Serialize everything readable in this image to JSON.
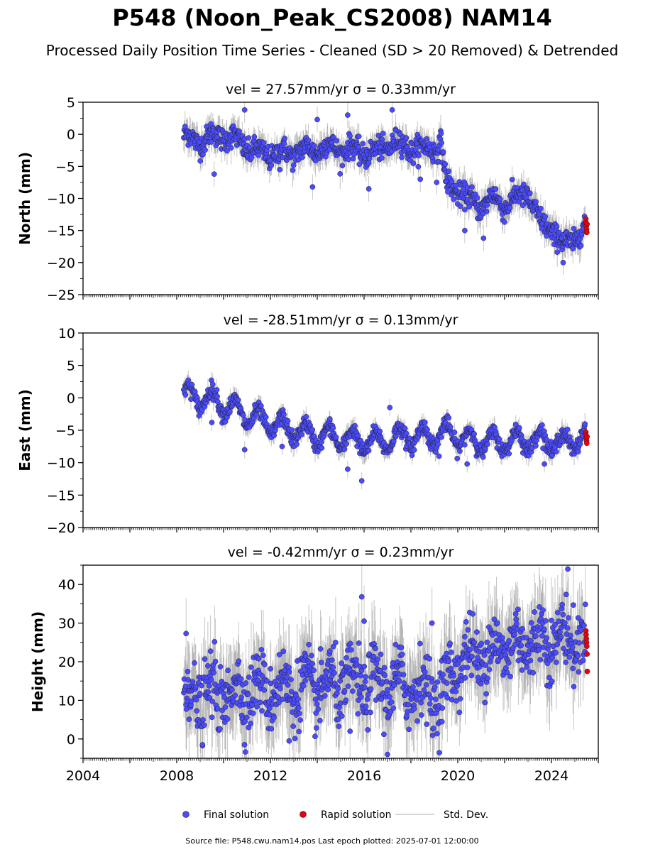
{
  "figure": {
    "title": "P548 (Noon_Peak_CS2008) NAM14",
    "subtitle": "Processed Daily Position Time Series - Cleaned (SD > 20 Removed) & Detrended",
    "source_note": "Source file: P548.cwu.nam14.pos  Last epoch plotted: 2025-07-01 12:00:00"
  },
  "legend": {
    "final": "Final solution",
    "rapid": "Rapid solution",
    "std": "Std. Dev."
  },
  "colors": {
    "final": "#4a4aff",
    "rapid": "#e8000b",
    "std": "#b0b0b0",
    "std_dense": "#505050"
  },
  "chart_data": [
    {
      "type": "scatter",
      "title": "vel = 27.57mm/yr   σ = 0.33mm/yr",
      "ylabel": "North (mm)",
      "xlim": [
        2004.0,
        2026.0
      ],
      "ylim": [
        -25,
        5
      ],
      "yticks": [
        -25,
        -20,
        -15,
        -10,
        -5,
        0,
        5
      ],
      "ytick_labels": [
        "−25",
        "−20",
        "−15",
        "−10",
        "−5",
        "0",
        "5"
      ],
      "final_trend": [
        [
          2008.3,
          -0.5
        ],
        [
          2009.0,
          -1.0
        ],
        [
          2010.0,
          0.0
        ],
        [
          2010.8,
          -1.5
        ],
        [
          2011.5,
          -3.0
        ],
        [
          2012.5,
          -3.0
        ],
        [
          2013.5,
          -2.5
        ],
        [
          2014.5,
          -2.0
        ],
        [
          2015.5,
          -2.5
        ],
        [
          2016.5,
          -3.0
        ],
        [
          2017.0,
          -1.5
        ],
        [
          2017.5,
          -1.5
        ],
        [
          2018.5,
          -2.5
        ],
        [
          2019.3,
          -1.5
        ],
        [
          2019.5,
          -8.0
        ],
        [
          2020.0,
          -8.5
        ],
        [
          2020.5,
          -10.5
        ],
        [
          2021.0,
          -11.0
        ],
        [
          2021.5,
          -10.0
        ],
        [
          2022.0,
          -11.0
        ],
        [
          2022.5,
          -10.0
        ],
        [
          2023.0,
          -9.0
        ],
        [
          2023.5,
          -14.0
        ],
        [
          2024.0,
          -14.5
        ],
        [
          2024.5,
          -17.5
        ],
        [
          2025.0,
          -16.0
        ],
        [
          2025.45,
          -14.5
        ]
      ],
      "final_outliers": [
        [
          2010.9,
          3.8
        ],
        [
          2012.4,
          -5.5
        ],
        [
          2014.0,
          2.3
        ],
        [
          2015.3,
          3.0
        ],
        [
          2016.7,
          -2.0
        ],
        [
          2017.2,
          3.8
        ],
        [
          2019.1,
          -7.5
        ],
        [
          2020.3,
          -15.0
        ],
        [
          2021.1,
          -16.2
        ],
        [
          2024.5,
          -20.0
        ],
        [
          2009.6,
          -6.2
        ],
        [
          2013.8,
          -8.2
        ],
        [
          2018.4,
          -7.0
        ],
        [
          2016.2,
          -8.5
        ]
      ],
      "rapid": [
        [
          2025.47,
          -13.2
        ],
        [
          2025.48,
          -13.8
        ],
        [
          2025.49,
          -14.3
        ],
        [
          2025.5,
          -14.8
        ],
        [
          2025.51,
          -15.3
        ],
        [
          2025.52,
          -14.0
        ]
      ],
      "amplitude": 0.8,
      "noise": 0.9
    },
    {
      "type": "scatter",
      "title": "vel = -28.51mm/yr   σ = 0.13mm/yr",
      "ylabel": "East (mm)",
      "xlim": [
        2004.0,
        2026.0
      ],
      "ylim": [
        -20,
        10
      ],
      "yticks": [
        -20,
        -15,
        -10,
        -5,
        0,
        5,
        10
      ],
      "ytick_labels": [
        "−20",
        "−15",
        "−10",
        "−5",
        "0",
        "5",
        "10"
      ],
      "final_trend": [
        [
          2008.3,
          0.5
        ],
        [
          2009.0,
          0.0
        ],
        [
          2009.8,
          -0.5
        ],
        [
          2010.5,
          -2.0
        ],
        [
          2011.5,
          -3.5
        ],
        [
          2012.5,
          -4.5
        ],
        [
          2013.5,
          -5.5
        ],
        [
          2014.5,
          -6.0
        ],
        [
          2015.5,
          -6.5
        ],
        [
          2016.5,
          -7.0
        ],
        [
          2017.5,
          -6.0
        ],
        [
          2018.5,
          -6.0
        ],
        [
          2019.5,
          -5.5
        ],
        [
          2020.5,
          -6.5
        ],
        [
          2021.5,
          -7.0
        ],
        [
          2022.5,
          -6.5
        ],
        [
          2023.5,
          -6.5
        ],
        [
          2024.5,
          -7.0
        ],
        [
          2025.45,
          -6.0
        ]
      ],
      "final_outliers": [
        [
          2015.9,
          -12.8
        ],
        [
          2015.3,
          -11.0
        ],
        [
          2010.9,
          -8.0
        ],
        [
          2017.1,
          -1.5
        ],
        [
          2019.2,
          -9.0
        ],
        [
          2020.4,
          -10.2
        ],
        [
          2012.5,
          -7.5
        ],
        [
          2023.7,
          -10.2
        ],
        [
          2009.5,
          -3.8
        ]
      ],
      "rapid": [
        [
          2025.47,
          -5.3
        ],
        [
          2025.48,
          -5.8
        ],
        [
          2025.49,
          -6.2
        ],
        [
          2025.5,
          -6.6
        ],
        [
          2025.51,
          -7.0
        ],
        [
          2025.52,
          -6.0
        ]
      ],
      "amplitude": 1.6,
      "noise": 0.6
    },
    {
      "type": "scatter",
      "title": "vel = -0.42mm/yr   σ = 0.23mm/yr",
      "ylabel": "Height (mm)",
      "xlabel": "",
      "xlim": [
        2004.0,
        2026.0
      ],
      "ylim": [
        -5,
        45
      ],
      "yticks": [
        0,
        10,
        20,
        30,
        40
      ],
      "ytick_labels": [
        "0",
        "10",
        "20",
        "30",
        "40"
      ],
      "xticks": [
        2004,
        2008,
        2012,
        2016,
        2020,
        2024
      ],
      "xtick_labels": [
        "2004",
        "2008",
        "2012",
        "2016",
        "2020",
        "2024"
      ],
      "final_trend": [
        [
          2008.3,
          11.0
        ],
        [
          2009.5,
          11.5
        ],
        [
          2011.0,
          12.5
        ],
        [
          2012.5,
          13.0
        ],
        [
          2014.0,
          13.5
        ],
        [
          2015.5,
          14.5
        ],
        [
          2017.0,
          14.0
        ],
        [
          2018.5,
          13.0
        ],
        [
          2019.3,
          11.0
        ],
        [
          2020.0,
          20.0
        ],
        [
          2021.0,
          22.0
        ],
        [
          2022.0,
          24.0
        ],
        [
          2023.0,
          25.0
        ],
        [
          2024.0,
          26.0
        ],
        [
          2025.45,
          26.0
        ]
      ],
      "final_outliers": [
        [
          2015.9,
          36.8
        ],
        [
          2018.9,
          30.0
        ],
        [
          2017.0,
          -4.0
        ],
        [
          2024.7,
          44.0
        ],
        [
          2008.4,
          27.3
        ],
        [
          2016.0,
          30.5
        ],
        [
          2009.1,
          -1.5
        ],
        [
          2012.8,
          -0.5
        ],
        [
          2015.4,
          2.0
        ]
      ],
      "rapid": [
        [
          2025.47,
          28.0
        ],
        [
          2025.48,
          27.0
        ],
        [
          2025.49,
          26.0
        ],
        [
          2025.5,
          25.0
        ],
        [
          2025.51,
          24.0
        ],
        [
          2025.52,
          22.0
        ],
        [
          2025.53,
          17.5
        ]
      ],
      "amplitude": 3.5,
      "noise": 4.2
    }
  ]
}
